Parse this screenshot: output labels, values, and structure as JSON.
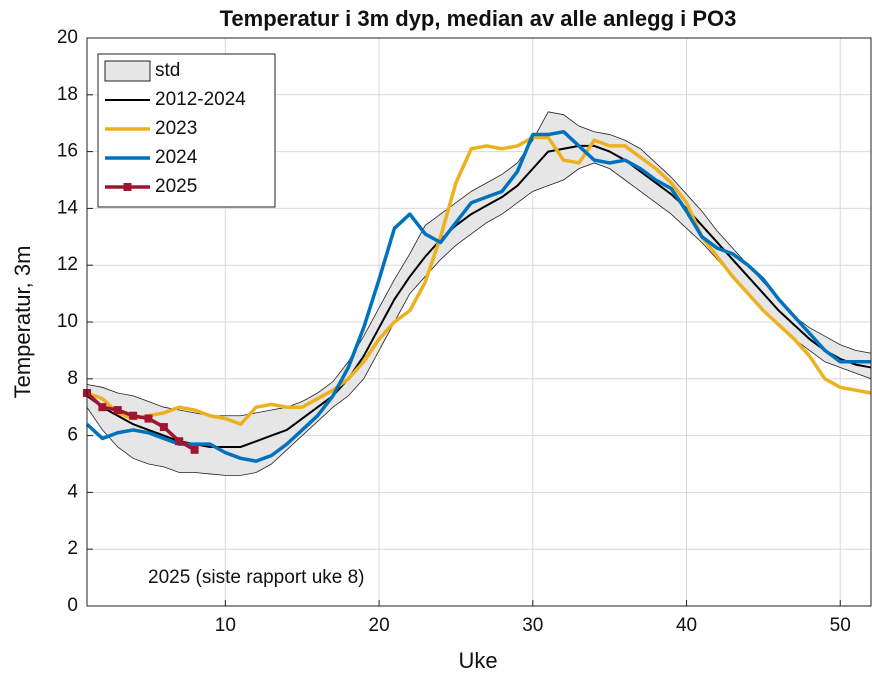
{
  "chart_data": {
    "type": "line",
    "title": "Temperatur i 3m dyp, median av alle anlegg i PO3",
    "xlabel": "Uke",
    "ylabel": "Temperatur, 3m",
    "annotation": "2025 (siste rapport uke 8)",
    "x": [
      1,
      2,
      3,
      4,
      5,
      6,
      7,
      8,
      9,
      10,
      11,
      12,
      13,
      14,
      15,
      16,
      17,
      18,
      19,
      20,
      21,
      22,
      23,
      24,
      25,
      26,
      27,
      28,
      29,
      30,
      31,
      32,
      33,
      34,
      35,
      36,
      37,
      38,
      39,
      40,
      41,
      42,
      43,
      44,
      45,
      46,
      47,
      48,
      49,
      50,
      51,
      52
    ],
    "xlim": [
      1,
      52
    ],
    "xticks": [
      10,
      20,
      30,
      40,
      50
    ],
    "ylim": [
      0,
      20
    ],
    "yticks": [
      0,
      2,
      4,
      6,
      8,
      10,
      12,
      14,
      16,
      18,
      20
    ],
    "grid": true,
    "legend": "northwest",
    "band": {
      "name": "std",
      "color": "#e6e6e6",
      "upper": [
        7.8,
        7.7,
        7.5,
        7.4,
        7.2,
        7.0,
        6.9,
        6.8,
        6.7,
        6.7,
        6.7,
        6.8,
        6.9,
        7.0,
        7.2,
        7.5,
        7.9,
        8.6,
        9.5,
        10.5,
        11.5,
        12.4,
        13.4,
        13.8,
        14.2,
        14.6,
        14.9,
        15.2,
        15.6,
        16.4,
        17.4,
        17.3,
        16.9,
        16.7,
        16.6,
        16.4,
        16.1,
        15.6,
        15.1,
        14.5,
        13.9,
        13.2,
        12.6,
        12.0,
        11.4,
        10.8,
        10.2,
        9.8,
        9.5,
        9.2,
        9.0,
        8.9
      ],
      "lower": [
        7.0,
        6.2,
        5.6,
        5.2,
        5.0,
        4.9,
        4.7,
        4.7,
        4.65,
        4.6,
        4.6,
        4.7,
        5.0,
        5.5,
        6.0,
        6.5,
        7.0,
        7.4,
        8.0,
        9.0,
        10.0,
        11.0,
        11.6,
        12.2,
        12.7,
        13.1,
        13.5,
        13.8,
        14.2,
        14.6,
        14.8,
        15.0,
        15.4,
        15.6,
        15.4,
        15.0,
        14.6,
        14.2,
        13.8,
        13.3,
        12.8,
        12.2,
        11.6,
        11.0,
        10.4,
        9.9,
        9.4,
        9.0,
        8.6,
        8.4,
        8.2,
        8.0
      ]
    },
    "series": [
      {
        "name": "2012-2024",
        "color": "#000000",
        "values": [
          7.4,
          7.0,
          6.7,
          6.4,
          6.2,
          6.0,
          5.8,
          5.7,
          5.6,
          5.6,
          5.6,
          5.8,
          6.0,
          6.2,
          6.6,
          7.0,
          7.4,
          8.0,
          8.8,
          9.8,
          10.8,
          11.6,
          12.3,
          12.9,
          13.4,
          13.8,
          14.1,
          14.4,
          14.8,
          15.4,
          16.0,
          16.1,
          16.2,
          16.2,
          16.0,
          15.7,
          15.3,
          14.9,
          14.5,
          14.0,
          13.4,
          12.8,
          12.2,
          11.6,
          11.0,
          10.4,
          9.9,
          9.4,
          9.0,
          8.7,
          8.5,
          8.4
        ]
      },
      {
        "name": "2023",
        "color": "#edb120",
        "values": [
          7.5,
          7.3,
          6.8,
          6.6,
          6.7,
          6.8,
          7.0,
          6.9,
          6.7,
          6.6,
          6.4,
          7.0,
          7.1,
          7.0,
          7.0,
          7.3,
          7.6,
          8.0,
          8.6,
          9.4,
          10.0,
          10.4,
          11.4,
          13.0,
          14.9,
          16.1,
          16.2,
          16.1,
          16.2,
          16.5,
          16.5,
          15.7,
          15.6,
          16.4,
          16.2,
          16.2,
          15.8,
          15.4,
          14.9,
          14.2,
          13.0,
          12.3,
          11.6,
          11.0,
          10.4,
          9.9,
          9.4,
          8.8,
          8.0,
          7.7,
          7.6,
          7.5
        ]
      },
      {
        "name": "2024",
        "color": "#0072bd",
        "values": [
          6.4,
          5.9,
          6.1,
          6.2,
          6.1,
          5.9,
          5.7,
          5.7,
          5.7,
          5.4,
          5.2,
          5.1,
          5.3,
          5.7,
          6.2,
          6.7,
          7.4,
          8.4,
          9.8,
          11.5,
          13.3,
          13.8,
          13.1,
          12.8,
          13.5,
          14.2,
          14.4,
          14.6,
          15.3,
          16.6,
          16.6,
          16.7,
          16.2,
          15.7,
          15.6,
          15.7,
          15.4,
          15.0,
          14.7,
          13.9,
          13.0,
          12.6,
          12.4,
          12.0,
          11.5,
          10.8,
          10.2,
          9.6,
          9.0,
          8.6,
          8.6,
          8.6
        ]
      },
      {
        "name": "2025",
        "color": "#a2142f",
        "marker": "square",
        "values": [
          7.5,
          7.0,
          6.9,
          6.7,
          6.6,
          6.3,
          5.8,
          5.5,
          null,
          null,
          null,
          null,
          null,
          null,
          null,
          null,
          null,
          null,
          null,
          null,
          null,
          null,
          null,
          null,
          null,
          null,
          null,
          null,
          null,
          null,
          null,
          null,
          null,
          null,
          null,
          null,
          null,
          null,
          null,
          null,
          null,
          null,
          null,
          null,
          null,
          null,
          null,
          null,
          null,
          null,
          null,
          null
        ]
      }
    ]
  }
}
